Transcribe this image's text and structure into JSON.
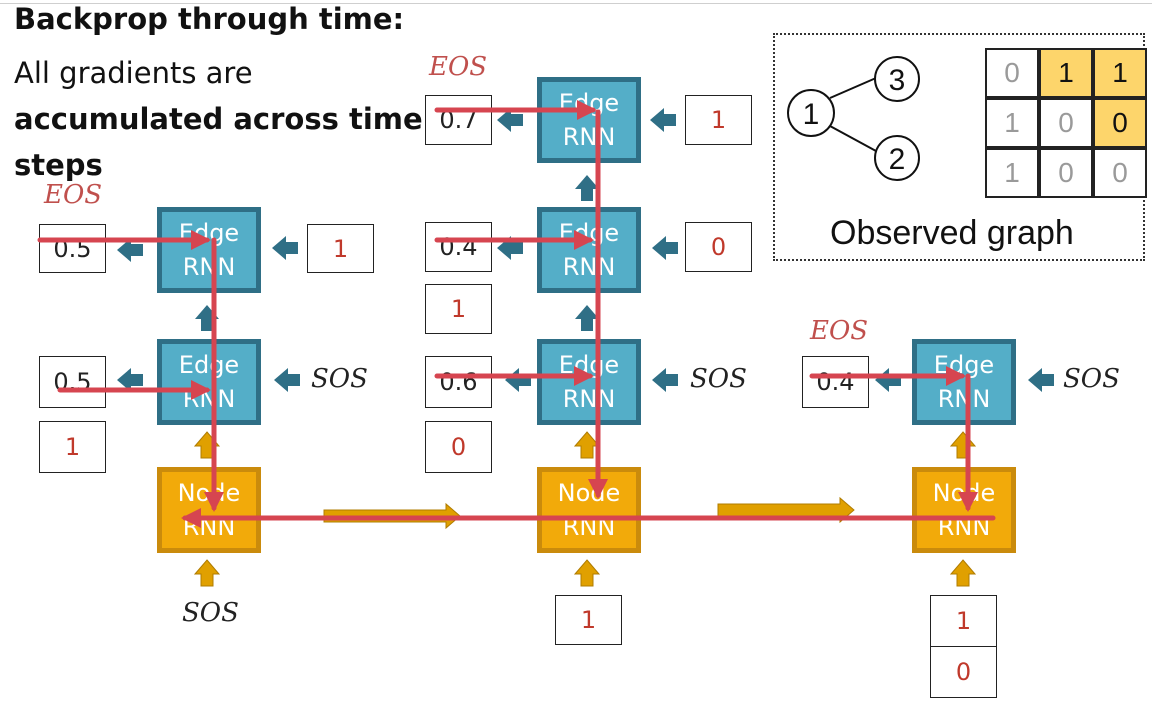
{
  "heading": {
    "title": "Backprop through time:",
    "line_plain": "All gradients are",
    "line_bold": "accumulated across time",
    "line_tail": "steps"
  },
  "tokens": {
    "eos": "EOS",
    "sos": "SOS"
  },
  "rnn": {
    "edge_top": "Edge",
    "node_top": "Node",
    "bottom": "RNN"
  },
  "step1": {
    "edge_top_out": "0.5",
    "edge_top_in": "1",
    "edge_bot_out": "0.5",
    "edge_bot_target": "1"
  },
  "step2": {
    "e3_out": "0.7",
    "e3_in": "1",
    "e2_out": "0.4",
    "e2_in": "0",
    "e2_target": "1",
    "e1_out": "0.6",
    "e1_target": "0",
    "node_in": "1"
  },
  "step3": {
    "e1_out": "0.4",
    "node_in_a": "1",
    "node_in_b": "0"
  },
  "graph": {
    "nodes": [
      "1",
      "2",
      "3"
    ],
    "matrix": [
      [
        "0",
        "1",
        "1"
      ],
      [
        "1",
        "0",
        "0"
      ],
      [
        "1",
        "0",
        "0"
      ]
    ],
    "highlighted": [
      [
        0,
        1
      ],
      [
        0,
        2
      ],
      [
        1,
        2
      ]
    ],
    "caption": "Observed graph"
  },
  "colors": {
    "edge_fill": "#54aec8",
    "edge_border": "#2f6f86",
    "node_fill": "#f2aa0a",
    "node_border": "#ca8b0c",
    "gradient_path": "#d64550",
    "highlight": "#fdd56b"
  }
}
